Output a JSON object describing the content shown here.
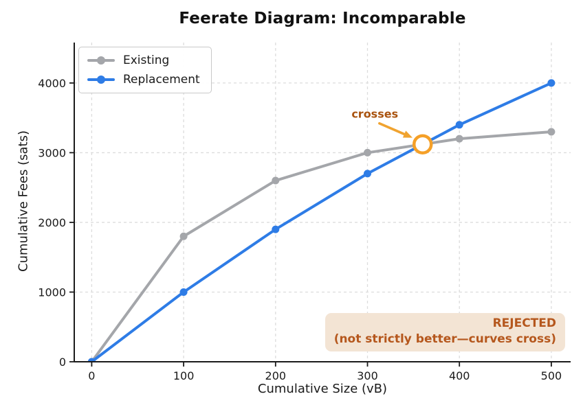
{
  "chart_data": {
    "type": "line",
    "title": "Feerate Diagram: Incomparable",
    "xlabel": "Cumulative Size (vB)",
    "ylabel": "Cumulative Fees (sats)",
    "x": [
      0,
      100,
      200,
      300,
      400,
      500
    ],
    "series": [
      {
        "name": "Existing",
        "color": "#a4a6aa",
        "values": [
          0,
          1800,
          2600,
          3000,
          3200,
          3300
        ]
      },
      {
        "name": "Replacement",
        "color": "#2e7ce6",
        "values": [
          0,
          1000,
          1900,
          2700,
          3400,
          4000
        ]
      }
    ],
    "xticks": [
      0,
      100,
      200,
      300,
      400,
      500
    ],
    "yticks": [
      0,
      1000,
      2000,
      3000,
      4000
    ],
    "xlim": [
      -19,
      521
    ],
    "ylim": [
      0,
      4580
    ],
    "grid": true,
    "grid_style": "dashed",
    "legend": {
      "position": "upper-left",
      "entries": [
        "Existing",
        "Replacement"
      ]
    },
    "annotations": {
      "crosses_label": {
        "text": "crosses",
        "color": "#a9530f",
        "x": 308,
        "y": 3560
      },
      "arrow": {
        "color": "#f0a330",
        "from": {
          "x": 313,
          "y": 3420
        },
        "to": {
          "x": 349,
          "y": 3215
        }
      },
      "crossing_marker": {
        "x": 360,
        "y": 3120,
        "style": "open-circle",
        "color": "#f5a028",
        "fill": "#ffffff"
      }
    },
    "badge": {
      "line1": "REJECTED",
      "line2": "(not strictly better—curves cross)",
      "text_color": "#b5571d",
      "bg_color": "#f3e4d4"
    },
    "axis_color": "#1a1a1a",
    "grid_color": "#dcdcdc"
  }
}
